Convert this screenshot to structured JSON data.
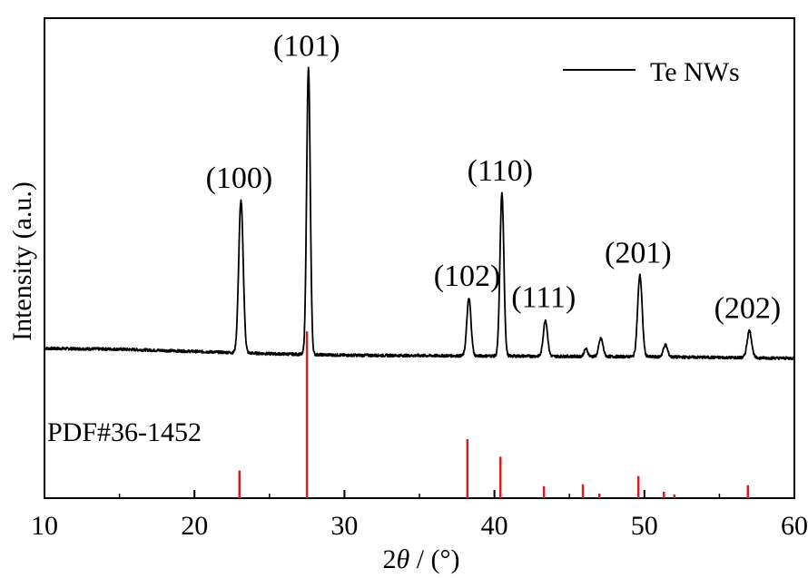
{
  "chart_data": {
    "type": "line",
    "xlabel_prefix": "2",
    "xlabel_symbol": "θ",
    "xlabel_suffix": " / (°)",
    "ylabel": "Intensity (a.u.)",
    "xlim": [
      10,
      60
    ],
    "x_ticks": [
      "10",
      "20",
      "30",
      "40",
      "50",
      "60"
    ],
    "grid": false,
    "legend_position": "top-right",
    "series": [
      {
        "name": "Te NWs",
        "color": "#000000",
        "baseline": [
          [
            10,
            0.65
          ],
          [
            15,
            0.6
          ],
          [
            20,
            0.45
          ],
          [
            25,
            0.3
          ],
          [
            30,
            0.2
          ],
          [
            40,
            0.15
          ],
          [
            50,
            0.1
          ],
          [
            60,
            0
          ]
        ],
        "peaks": [
          {
            "pos": 23.1,
            "height": 10.1,
            "width": 0.15,
            "label": "(100)"
          },
          {
            "pos": 27.6,
            "height": 19.0,
            "width": 0.12,
            "label": "(101)"
          },
          {
            "pos": 38.3,
            "height": 3.8,
            "width": 0.14,
            "label": "(102)"
          },
          {
            "pos": 40.5,
            "height": 10.8,
            "width": 0.13,
            "label": "(110)"
          },
          {
            "pos": 43.4,
            "height": 2.4,
            "width": 0.14,
            "label": "(111)"
          },
          {
            "pos": 46.1,
            "height": 0.5,
            "width": 0.12,
            "label": ""
          },
          {
            "pos": 47.1,
            "height": 1.2,
            "width": 0.14,
            "label": ""
          },
          {
            "pos": 49.7,
            "height": 5.4,
            "width": 0.15,
            "label": "(201)"
          },
          {
            "pos": 51.4,
            "height": 0.8,
            "width": 0.14,
            "label": ""
          },
          {
            "pos": 57.0,
            "height": 1.8,
            "width": 0.15,
            "label": "(202)"
          }
        ]
      }
    ],
    "reference": {
      "name": "PDF#36-1452",
      "color": "#d21f1f",
      "lines": [
        {
          "x": 23.0,
          "intensity": 30
        },
        {
          "x": 27.5,
          "intensity": 181
        },
        {
          "x": 38.2,
          "intensity": 64
        },
        {
          "x": 40.4,
          "intensity": 45
        },
        {
          "x": 43.3,
          "intensity": 13
        },
        {
          "x": 45.9,
          "intensity": 15
        },
        {
          "x": 47.0,
          "intensity": 5
        },
        {
          "x": 49.6,
          "intensity": 24
        },
        {
          "x": 51.3,
          "intensity": 7
        },
        {
          "x": 52.0,
          "intensity": 4
        },
        {
          "x": 56.9,
          "intensity": 14
        }
      ]
    }
  }
}
